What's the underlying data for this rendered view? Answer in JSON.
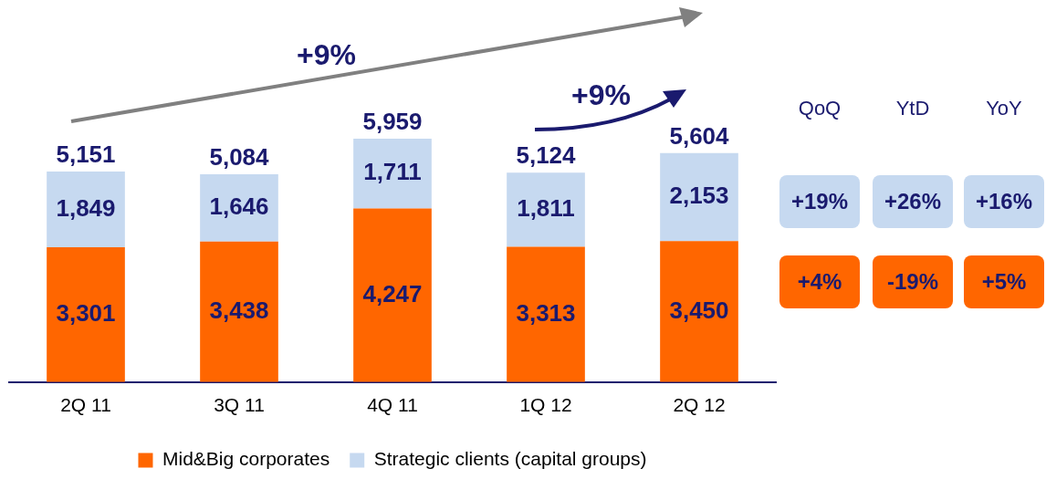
{
  "chart_data": {
    "type": "bar",
    "stacked": true,
    "categories": [
      "2Q 11",
      "3Q 11",
      "4Q 11",
      "1Q 12",
      "2Q 12"
    ],
    "series": [
      {
        "name": "Mid&Big corporates",
        "color": "#ff6600",
        "values": [
          3301,
          3438,
          4247,
          3313,
          3450
        ],
        "value_labels": [
          "3,301",
          "3,438",
          "4,247",
          "3,313",
          "3,450"
        ]
      },
      {
        "name": "Strategic clients (capital groups)",
        "color": "#c6d9f0",
        "values": [
          1849,
          1646,
          1711,
          1811,
          2153
        ],
        "value_labels": [
          "1,849",
          "1,646",
          "1,711",
          "1,811",
          "2,153"
        ]
      }
    ],
    "totals": [
      "5,151",
      "5,084",
      "5,959",
      "5,124",
      "5,604"
    ],
    "legend": "bottom",
    "grid": false,
    "tick_labels": "x",
    "annotations": [
      "+9%",
      "+9%",
      "QoQ",
      "YtD",
      "YoY",
      "+19%",
      "+26%",
      "+16%",
      "+4%",
      "-19%",
      "+5%"
    ]
  }
}
